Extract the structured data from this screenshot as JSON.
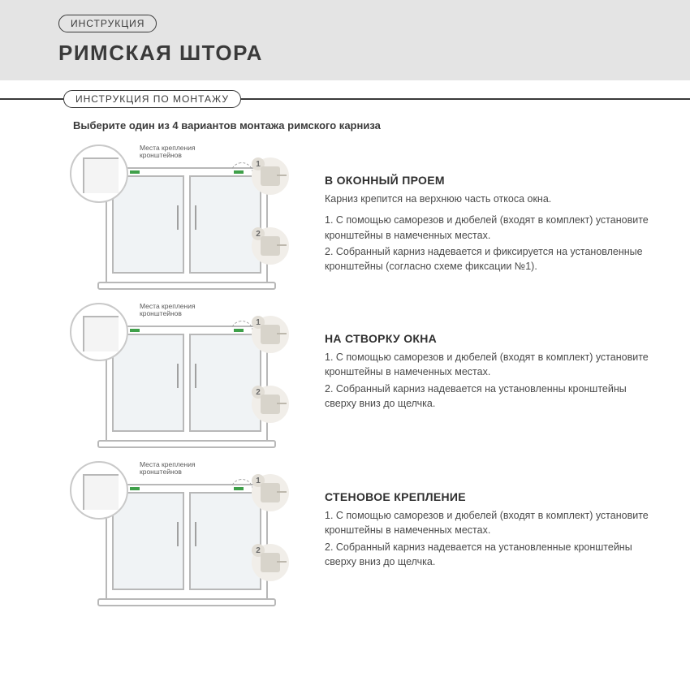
{
  "colors": {
    "header_bg": "#e4e4e4",
    "text": "#3a3a3a",
    "muted": "#5a5a5a",
    "frame": "#b8b8b8",
    "pane_fill": "#f0f3f5",
    "badge_bg": "#f1eee9",
    "badge_num_bg": "#e2ded6",
    "accent_green": "#3fa04a"
  },
  "header": {
    "badge": "ИНСТРУКЦИЯ",
    "title": "РИМСКАЯ ШТОРА"
  },
  "section": {
    "label": "ИНСТРУКЦИЯ ПО МОНТАЖУ"
  },
  "intro": "Выберите один из 4 вариантов монтажа римского карниза",
  "bracket_label_line1": "Места крепления",
  "bracket_label_line2": "кронштейнов",
  "step_nums": {
    "one": "1",
    "two": "2"
  },
  "options": [
    {
      "title": "В ОКОННЫЙ ПРОЕМ",
      "subtitle": "Карниз крепится на верхнюю часть откоса окна.",
      "steps": [
        "1. С помощью саморезов и дюбелей (входят в комплект) установите кронштейны в намеченных местах.",
        "2. Собранный карниз надевается и фиксируется на установленные кронштейны (согласно схеме фиксации №1)."
      ]
    },
    {
      "title": "НА СТВОРКУ ОКНА",
      "subtitle": "",
      "steps": [
        "1. С помощью саморезов и дюбелей (входят в комплект) установите кронштейны в намеченных местах.",
        "2. Собранный карниз надевается на установленны кронштейны сверху вниз до щелчка."
      ]
    },
    {
      "title": "СТЕНОВОЕ КРЕПЛЕНИЕ",
      "subtitle": "",
      "steps": [
        "1. С помощью саморезов и дюбелей (входят в комплект) установите кронштейны в намеченных местах.",
        "2. Собранный карниз надевается на установленные кронштейны сверху вниз до щелчка."
      ]
    }
  ]
}
